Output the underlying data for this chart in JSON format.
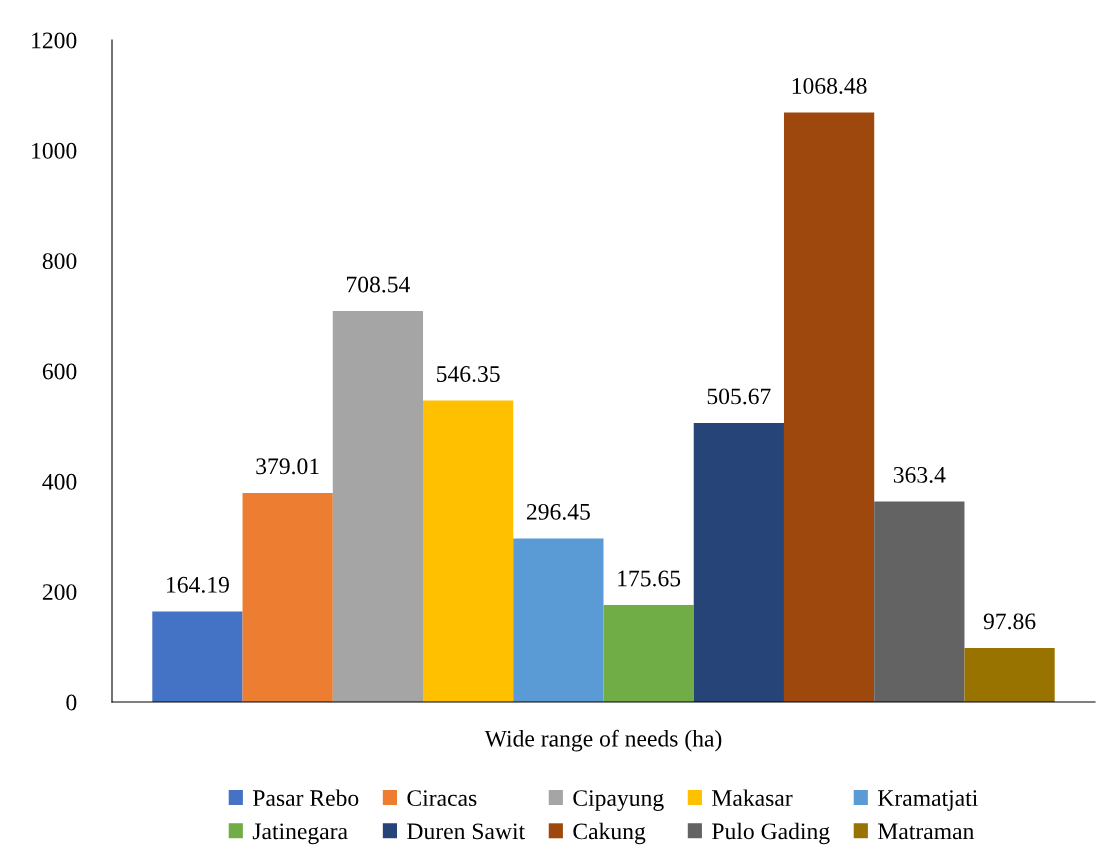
{
  "chart_data": {
    "type": "bar",
    "categories": [
      "Wide range of needs (ha)"
    ],
    "series": [
      {
        "name": "Pasar Rebo",
        "color": "#4472c4",
        "values": [
          164.19
        ]
      },
      {
        "name": "Ciracas",
        "color": "#ed7d31",
        "values": [
          379.01
        ]
      },
      {
        "name": "Cipayung",
        "color": "#a5a5a5",
        "values": [
          708.54
        ]
      },
      {
        "name": "Makasar",
        "color": "#ffc000",
        "values": [
          546.35
        ]
      },
      {
        "name": "Kramatjati",
        "color": "#5b9bd5",
        "values": [
          296.45
        ]
      },
      {
        "name": "Jatinegara",
        "color": "#70ad47",
        "values": [
          175.65
        ]
      },
      {
        "name": "Duren Sawit",
        "color": "#264478",
        "values": [
          505.67
        ]
      },
      {
        "name": "Cakung",
        "color": "#9e480e",
        "values": [
          1068.48
        ]
      },
      {
        "name": "Pulo Gading",
        "color": "#636363",
        "values": [
          363.4
        ]
      },
      {
        "name": "Matraman",
        "color": "#997300",
        "values": [
          97.86
        ]
      }
    ],
    "ylim": [
      0,
      1200
    ],
    "yticks": [
      0,
      200,
      400,
      600,
      800,
      1000,
      1200
    ],
    "data_labels": true,
    "grid": false,
    "legend": "bottom"
  }
}
